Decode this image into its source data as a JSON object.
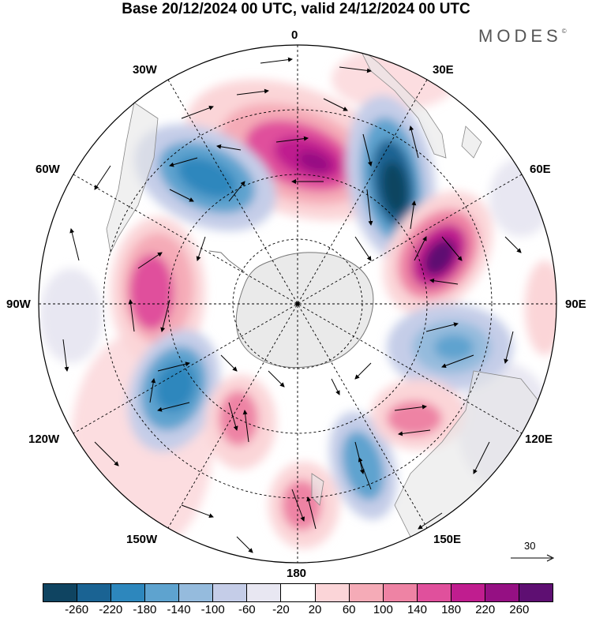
{
  "title": "Base 20/12/2024 00 UTC, valid 24/12/2024 00 UTC",
  "logo": {
    "text": "MODES",
    "mark": "©"
  },
  "longitude_labels": {
    "top": "0",
    "bottom": "180",
    "w30": "30W",
    "e30": "30E",
    "w60": "60W",
    "e60": "60E",
    "w90": "90W",
    "e90": "90E",
    "w120": "120W",
    "e120": "120E",
    "w150": "150W",
    "e150": "150E"
  },
  "reference_vector": "30",
  "colorbar": {
    "colors": [
      "#0f4461",
      "#1a6393",
      "#2d87bd",
      "#5ea3cf",
      "#95bbdd",
      "#c5cde8",
      "#e8e7f2",
      "#ffffff",
      "#fbd5d8",
      "#f5abb7",
      "#ee83a4",
      "#e0509c",
      "#c01d8f",
      "#951083",
      "#5e0f72"
    ],
    "ticks": [
      "-260",
      "-220",
      "-180",
      "-140",
      "-100",
      "-60",
      "-20",
      "20",
      "60",
      "100",
      "140",
      "180",
      "220",
      "260"
    ]
  }
}
